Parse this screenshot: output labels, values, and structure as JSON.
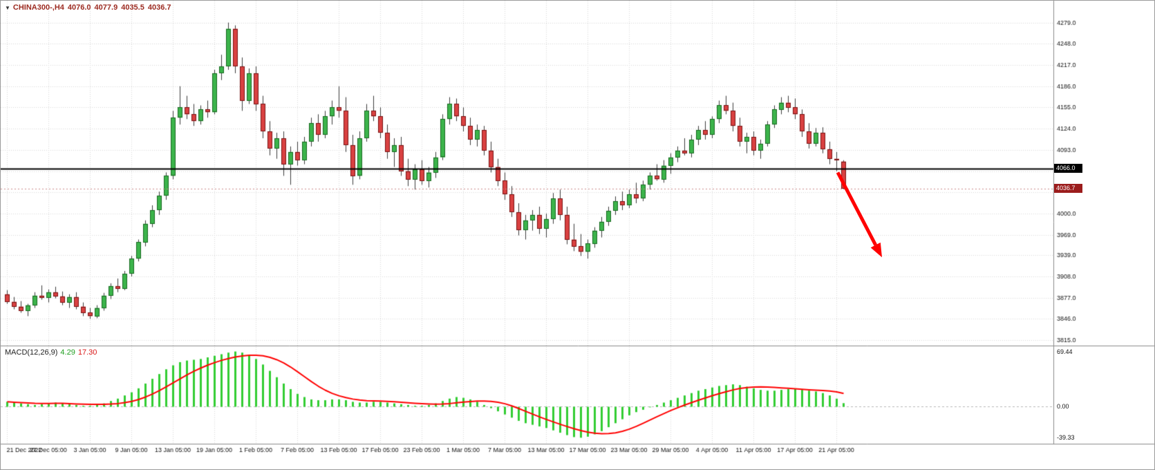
{
  "icons": {
    "dropdown": "▼"
  },
  "header": {
    "symbol_period": "CHINA300-,H4",
    "open": "4076.0",
    "high": "4077.9",
    "low": "4035.5",
    "close": "4036.7",
    "text_color": "#9c2b21"
  },
  "chart_data": {
    "type": "candlestick",
    "title": "CHINA300-,H4",
    "symbol": "CHINA300-",
    "timeframe": "H4",
    "grid": true,
    "ylim": [
      3809,
      4311
    ],
    "y_ticks": [
      3815,
      3846,
      3877,
      3908,
      3939,
      3969,
      4000,
      4031,
      4062,
      4093,
      4124,
      4155,
      4186,
      4217,
      4248,
      4279
    ],
    "x_labels": [
      "21 Dec 2022",
      "27 Dec 05:00",
      "3 Jan 05:00",
      "9 Jan 05:00",
      "13 Jan 05:00",
      "19 Jan 05:00",
      "1 Feb 05:00",
      "7 Feb 05:00",
      "13 Feb 05:00",
      "17 Feb 05:00",
      "23 Feb 05:00",
      "1 Mar 05:00",
      "7 Mar 05:00",
      "13 Mar 05:00",
      "17 Mar 05:00",
      "23 Mar 05:00",
      "29 Mar 05:00",
      "4 Apr 05:00",
      "11 Apr 05:00",
      "17 Apr 05:00",
      "21 Apr 05:00"
    ],
    "bars_per_label": 6,
    "hline": {
      "price": 4066.0,
      "label": "4066.0",
      "color": "#000000",
      "box_bg": "#000000"
    },
    "bid": {
      "price": 4036.7,
      "label": "4036.7",
      "color": "#cc8888",
      "box_bg": "#9b1c1c"
    },
    "arrow": {
      "from_bar": 120.2,
      "from_price": 4060,
      "to_bar": 126.6,
      "to_price": 3936,
      "color": "#ff0000"
    },
    "colors": {
      "up": "#3cb44b",
      "up_border": "#17691f",
      "down": "#d94141",
      "down_border": "#7a1212",
      "wick": "#3a3a3a",
      "grid": "#d8d8d8",
      "separator": "#8a8a8a",
      "axis_text": "#111111",
      "macd_hist": "#32cd32",
      "macd_signal": "#ff0000",
      "macd_zero": "#b8b8b8"
    },
    "candles": [
      [
        3882,
        3888,
        3868,
        3871
      ],
      [
        3871,
        3878,
        3860,
        3864
      ],
      [
        3864,
        3872,
        3855,
        3858
      ],
      [
        3858,
        3868,
        3850,
        3866
      ],
      [
        3866,
        3885,
        3862,
        3880
      ],
      [
        3880,
        3895,
        3874,
        3877
      ],
      [
        3877,
        3889,
        3870,
        3885
      ],
      [
        3885,
        3893,
        3876,
        3879
      ],
      [
        3879,
        3886,
        3866,
        3870
      ],
      [
        3870,
        3882,
        3862,
        3878
      ],
      [
        3878,
        3885,
        3860,
        3864
      ],
      [
        3864,
        3870,
        3850,
        3855
      ],
      [
        3855,
        3862,
        3846,
        3850
      ],
      [
        3850,
        3866,
        3847,
        3862
      ],
      [
        3862,
        3884,
        3858,
        3880
      ],
      [
        3880,
        3898,
        3875,
        3894
      ],
      [
        3894,
        3905,
        3885,
        3890
      ],
      [
        3890,
        3916,
        3888,
        3912
      ],
      [
        3912,
        3938,
        3908,
        3934
      ],
      [
        3934,
        3962,
        3930,
        3958
      ],
      [
        3958,
        3990,
        3952,
        3985
      ],
      [
        3985,
        4012,
        3980,
        4005
      ],
      [
        4005,
        4032,
        3998,
        4026
      ],
      [
        4026,
        4060,
        4020,
        4055
      ],
      [
        4055,
        4150,
        4050,
        4140
      ],
      [
        4140,
        4186,
        4130,
        4155
      ],
      [
        4155,
        4172,
        4138,
        4145
      ],
      [
        4145,
        4160,
        4128,
        4135
      ],
      [
        4135,
        4158,
        4130,
        4152
      ],
      [
        4152,
        4165,
        4140,
        4148
      ],
      [
        4148,
        4210,
        4145,
        4205
      ],
      [
        4205,
        4232,
        4195,
        4215
      ],
      [
        4215,
        4279,
        4210,
        4270
      ],
      [
        4270,
        4275,
        4205,
        4215
      ],
      [
        4215,
        4228,
        4150,
        4165
      ],
      [
        4165,
        4212,
        4160,
        4205
      ],
      [
        4205,
        4215,
        4150,
        4160
      ],
      [
        4160,
        4172,
        4110,
        4120
      ],
      [
        4120,
        4135,
        4085,
        4095
      ],
      [
        4095,
        4118,
        4080,
        4110
      ],
      [
        4110,
        4120,
        4055,
        4072
      ],
      [
        4072,
        4098,
        4042,
        4090
      ],
      [
        4090,
        4105,
        4070,
        4078
      ],
      [
        4078,
        4112,
        4072,
        4105
      ],
      [
        4105,
        4140,
        4098,
        4132
      ],
      [
        4132,
        4145,
        4105,
        4115
      ],
      [
        4115,
        4150,
        4110,
        4142
      ],
      [
        4142,
        4165,
        4130,
        4155
      ],
      [
        4155,
        4186,
        4140,
        4150
      ],
      [
        4150,
        4170,
        4090,
        4100
      ],
      [
        4100,
        4115,
        4042,
        4055
      ],
      [
        4055,
        4120,
        4050,
        4110
      ],
      [
        4110,
        4160,
        4105,
        4150
      ],
      [
        4150,
        4172,
        4135,
        4142
      ],
      [
        4142,
        4155,
        4110,
        4118
      ],
      [
        4118,
        4130,
        4080,
        4090
      ],
      [
        4090,
        4110,
        4068,
        4100
      ],
      [
        4100,
        4112,
        4055,
        4062
      ],
      [
        4062,
        4080,
        4040,
        4050
      ],
      [
        4050,
        4072,
        4035,
        4065
      ],
      [
        4065,
        4078,
        4042,
        4048
      ],
      [
        4048,
        4068,
        4038,
        4060
      ],
      [
        4060,
        4090,
        4052,
        4082
      ],
      [
        4082,
        4145,
        4078,
        4138
      ],
      [
        4138,
        4170,
        4130,
        4160
      ],
      [
        4160,
        4168,
        4135,
        4142
      ],
      [
        4142,
        4155,
        4120,
        4128
      ],
      [
        4128,
        4140,
        4100,
        4108
      ],
      [
        4108,
        4130,
        4098,
        4122
      ],
      [
        4122,
        4128,
        4085,
        4092
      ],
      [
        4092,
        4105,
        4060,
        4068
      ],
      [
        4068,
        4080,
        4040,
        4048
      ],
      [
        4048,
        4060,
        4020,
        4028
      ],
      [
        4028,
        4040,
        3995,
        4002
      ],
      [
        4002,
        4015,
        3968,
        3976
      ],
      [
        3976,
        3998,
        3962,
        3990
      ],
      [
        3990,
        4005,
        3975,
        3998
      ],
      [
        3998,
        4010,
        3970,
        3978
      ],
      [
        3978,
        4000,
        3965,
        3992
      ],
      [
        3992,
        4030,
        3985,
        4022
      ],
      [
        4022,
        4035,
        3990,
        3998
      ],
      [
        3998,
        4010,
        3955,
        3962
      ],
      [
        3962,
        3985,
        3945,
        3952
      ],
      [
        3952,
        3970,
        3938,
        3944
      ],
      [
        3944,
        3962,
        3934,
        3956
      ],
      [
        3956,
        3980,
        3950,
        3975
      ],
      [
        3975,
        3995,
        3965,
        3988
      ],
      [
        3988,
        4010,
        3982,
        4004
      ],
      [
        4004,
        4025,
        3998,
        4018
      ],
      [
        4018,
        4032,
        4005,
        4012
      ],
      [
        4012,
        4035,
        4008,
        4028
      ],
      [
        4028,
        4045,
        4015,
        4022
      ],
      [
        4022,
        4048,
        4018,
        4042
      ],
      [
        4042,
        4060,
        4035,
        4055
      ],
      [
        4055,
        4072,
        4048,
        4050
      ],
      [
        4050,
        4078,
        4045,
        4070
      ],
      [
        4070,
        4088,
        4058,
        4082
      ],
      [
        4082,
        4098,
        4075,
        4092
      ],
      [
        4092,
        4110,
        4085,
        4088
      ],
      [
        4088,
        4115,
        4082,
        4108
      ],
      [
        4108,
        4128,
        4100,
        4122
      ],
      [
        4122,
        4135,
        4108,
        4115
      ],
      [
        4115,
        4142,
        4110,
        4138
      ],
      [
        4138,
        4165,
        4132,
        4158
      ],
      [
        4158,
        4172,
        4145,
        4150
      ],
      [
        4150,
        4162,
        4120,
        4128
      ],
      [
        4128,
        4140,
        4098,
        4105
      ],
      [
        4105,
        4118,
        4088,
        4112
      ],
      [
        4112,
        4120,
        4085,
        4092
      ],
      [
        4092,
        4108,
        4080,
        4102
      ],
      [
        4102,
        4135,
        4098,
        4130
      ],
      [
        4130,
        4158,
        4125,
        4152
      ],
      [
        4152,
        4170,
        4145,
        4162
      ],
      [
        4162,
        4172,
        4148,
        4155
      ],
      [
        4155,
        4168,
        4138,
        4145
      ],
      [
        4145,
        4152,
        4112,
        4120
      ],
      [
        4120,
        4132,
        4095,
        4102
      ],
      [
        4102,
        4125,
        4098,
        4118
      ],
      [
        4118,
        4126,
        4088,
        4094
      ],
      [
        4094,
        4105,
        4072,
        4080
      ],
      [
        4080,
        4090,
        4062,
        4078
      ],
      [
        4076.0,
        4077.9,
        4035.5,
        4036.7
      ]
    ],
    "macd": {
      "label": "MACD(12,26,9)",
      "macd_value": "4.29",
      "signal_value": "17.30",
      "axis_labels": {
        "max": "69.44",
        "zero": "0.00",
        "min": "-39.33"
      },
      "ylim": [
        -46,
        76
      ],
      "signal_period": 9,
      "values": [
        6,
        5,
        4,
        3,
        2,
        3,
        4,
        5,
        4,
        3,
        2,
        1,
        1,
        2,
        4,
        7,
        10,
        14,
        18,
        23,
        29,
        35,
        41,
        47,
        52,
        56,
        58,
        59,
        60,
        62,
        64,
        66,
        68,
        69.4,
        68,
        65,
        60,
        53,
        45,
        37,
        29,
        22,
        16,
        12,
        9,
        8,
        8,
        9,
        9,
        8,
        6,
        5,
        5,
        6,
        6,
        5,
        4,
        3,
        2,
        1,
        1,
        2,
        4,
        7,
        10,
        12,
        11,
        9,
        6,
        2,
        -2,
        -6,
        -10,
        -14,
        -18,
        -21,
        -23,
        -25,
        -27,
        -30,
        -33,
        -36,
        -38.5,
        -39.3,
        -38,
        -35,
        -31,
        -26,
        -21,
        -16,
        -11,
        -7,
        -4,
        -1,
        2,
        5,
        8,
        11,
        14,
        17,
        20,
        22,
        24,
        26,
        27,
        28,
        27,
        25,
        23,
        21,
        20,
        20,
        21,
        22,
        22,
        21,
        20,
        19,
        17,
        14,
        10,
        4.29
      ]
    }
  }
}
